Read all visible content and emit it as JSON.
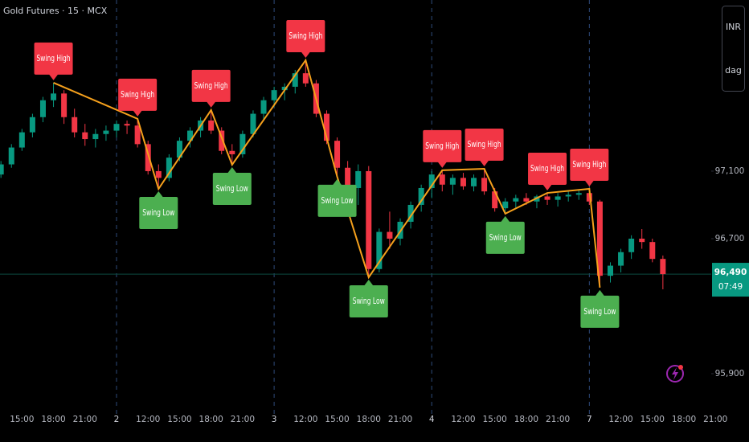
{
  "chart_data": {
    "type": "candlestick",
    "title": "Gold Futures · 15 · MCX",
    "currency": "INR",
    "unit": "dag",
    "up_color": "#089981",
    "down_color": "#f23645",
    "ohlc": [
      [
        97080,
        97160,
        97060,
        97140
      ],
      [
        97140,
        97260,
        97120,
        97240
      ],
      [
        97240,
        97350,
        97220,
        97330
      ],
      [
        97330,
        97440,
        97300,
        97420
      ],
      [
        97420,
        97540,
        97390,
        97520
      ],
      [
        97520,
        97624,
        97480,
        97560
      ],
      [
        97560,
        97580,
        97380,
        97420
      ],
      [
        97420,
        97470,
        97300,
        97330
      ],
      [
        97330,
        97380,
        97250,
        97290
      ],
      [
        97290,
        97350,
        97240,
        97320
      ],
      [
        97320,
        97370,
        97280,
        97340
      ],
      [
        97340,
        97400,
        97300,
        97380
      ],
      [
        97380,
        97400,
        97320,
        97370
      ],
      [
        97370,
        97410,
        97240,
        97260
      ],
      [
        97260,
        97280,
        97080,
        97100
      ],
      [
        97100,
        97140,
        96995,
        97060
      ],
      [
        97060,
        97200,
        97040,
        97180
      ],
      [
        97180,
        97300,
        97160,
        97280
      ],
      [
        97280,
        97360,
        97240,
        97340
      ],
      [
        97340,
        97420,
        97300,
        97400
      ],
      [
        97400,
        97462,
        97320,
        97340
      ],
      [
        97340,
        97360,
        97200,
        97220
      ],
      [
        97220,
        97260,
        97138,
        97200
      ],
      [
        97200,
        97340,
        97180,
        97320
      ],
      [
        97320,
        97460,
        97300,
        97440
      ],
      [
        97440,
        97540,
        97400,
        97520
      ],
      [
        97520,
        97600,
        97480,
        97580
      ],
      [
        97580,
        97620,
        97520,
        97600
      ],
      [
        97600,
        97700,
        97560,
        97680
      ],
      [
        97680,
        97757,
        97600,
        97620
      ],
      [
        97620,
        97640,
        97420,
        97440
      ],
      [
        97440,
        97460,
        97260,
        97280
      ],
      [
        97280,
        97300,
        97067,
        97120
      ],
      [
        97120,
        97160,
        96980,
        97000
      ],
      [
        97000,
        97140,
        96900,
        97100
      ],
      [
        97100,
        97130,
        96471,
        96520
      ],
      [
        96520,
        96760,
        96500,
        96740
      ],
      [
        96740,
        96860,
        96640,
        96700
      ],
      [
        96700,
        96820,
        96660,
        96800
      ],
      [
        96800,
        96920,
        96760,
        96900
      ],
      [
        96900,
        97020,
        96860,
        97000
      ],
      [
        97000,
        97100,
        96940,
        97080
      ],
      [
        97080,
        97105,
        96980,
        97020
      ],
      [
        97020,
        97080,
        96960,
        97060
      ],
      [
        97060,
        97090,
        96990,
        97010
      ],
      [
        97010,
        97080,
        96980,
        97060
      ],
      [
        97060,
        97114,
        96960,
        96980
      ],
      [
        96980,
        97000,
        96860,
        96880
      ],
      [
        96880,
        96940,
        96848,
        96920
      ],
      [
        96920,
        96960,
        96880,
        96940
      ],
      [
        96940,
        96970,
        96900,
        96920
      ],
      [
        96920,
        96960,
        96880,
        96950
      ],
      [
        96950,
        96971,
        96900,
        96930
      ],
      [
        96930,
        96970,
        96890,
        96950
      ],
      [
        96950,
        96980,
        96920,
        96960
      ],
      [
        96960,
        96990,
        96930,
        96970
      ],
      [
        96970,
        96995,
        96900,
        96920
      ],
      [
        96920,
        96930,
        96410,
        96480
      ],
      [
        96480,
        96560,
        96440,
        96540
      ],
      [
        96540,
        96640,
        96500,
        96620
      ],
      [
        96620,
        96720,
        96580,
        96700
      ],
      [
        96700,
        96757,
        96640,
        96680
      ],
      [
        96680,
        96700,
        96560,
        96580
      ],
      [
        96580,
        96600,
        96400,
        96490
      ]
    ],
    "zigzag_color": "#f5a01c",
    "swings": [
      {
        "label": "Swing High",
        "x": 5,
        "price": 97624
      },
      {
        "label": "Swing High",
        "x": 13,
        "price": 97410
      },
      {
        "label": "Swing Low",
        "x": 15,
        "price": 96995
      },
      {
        "label": "Swing High",
        "x": 20,
        "price": 97462
      },
      {
        "label": "Swing Low",
        "x": 22,
        "price": 97138
      },
      {
        "label": "Swing High",
        "x": 29,
        "price": 97757
      },
      {
        "label": "Swing Low",
        "x": 32,
        "price": 97067
      },
      {
        "label": "Swing Low",
        "x": 35,
        "price": 96471
      },
      {
        "label": "Swing High",
        "x": 42,
        "price": 97105
      },
      {
        "label": "Swing High",
        "x": 46,
        "price": 97114
      },
      {
        "label": "Swing Low",
        "x": 48,
        "price": 96848
      },
      {
        "label": "Swing High",
        "x": 52,
        "price": 96971
      },
      {
        "label": "Swing High",
        "x": 56,
        "price": 96995
      },
      {
        "label": "Swing Low",
        "x": 57,
        "price": 96410
      }
    ],
    "last_price": {
      "value": 96490,
      "label": "96,490",
      "countdown": "07:49"
    },
    "xlim": [
      -0.09,
      67.6
    ],
    "xticks": [
      {
        "value": 2,
        "label": "15:00"
      },
      {
        "value": 5,
        "label": "18:00"
      },
      {
        "value": 8,
        "label": "21:00"
      },
      {
        "value": 11,
        "label": "2"
      },
      {
        "value": 14,
        "label": "12:00"
      },
      {
        "value": 17,
        "label": "15:00"
      },
      {
        "value": 20,
        "label": "18:00"
      },
      {
        "value": 23,
        "label": "21:00"
      },
      {
        "value": 26,
        "label": "3"
      },
      {
        "value": 29,
        "label": "12:00"
      },
      {
        "value": 32,
        "label": "15:00"
      },
      {
        "value": 35,
        "label": "18:00"
      },
      {
        "value": 38,
        "label": "21:00"
      },
      {
        "value": 41,
        "label": "4"
      },
      {
        "value": 44,
        "label": "12:00"
      },
      {
        "value": 47,
        "label": "15:00"
      },
      {
        "value": 50,
        "label": "18:00"
      },
      {
        "value": 53,
        "label": "21:00"
      },
      {
        "value": 56,
        "label": "7"
      },
      {
        "value": 59,
        "label": "12:00"
      },
      {
        "value": 62,
        "label": "15:00"
      },
      {
        "value": 65,
        "label": "18:00"
      },
      {
        "value": 68,
        "label": "21:00"
      }
    ],
    "ylim": [
      95638,
      98114
    ],
    "yticks": [
      {
        "value": 95900,
        "label": "95,900"
      },
      {
        "value": 96700,
        "label": "96,700"
      },
      {
        "value": 97100,
        "label": "97,100"
      }
    ]
  }
}
